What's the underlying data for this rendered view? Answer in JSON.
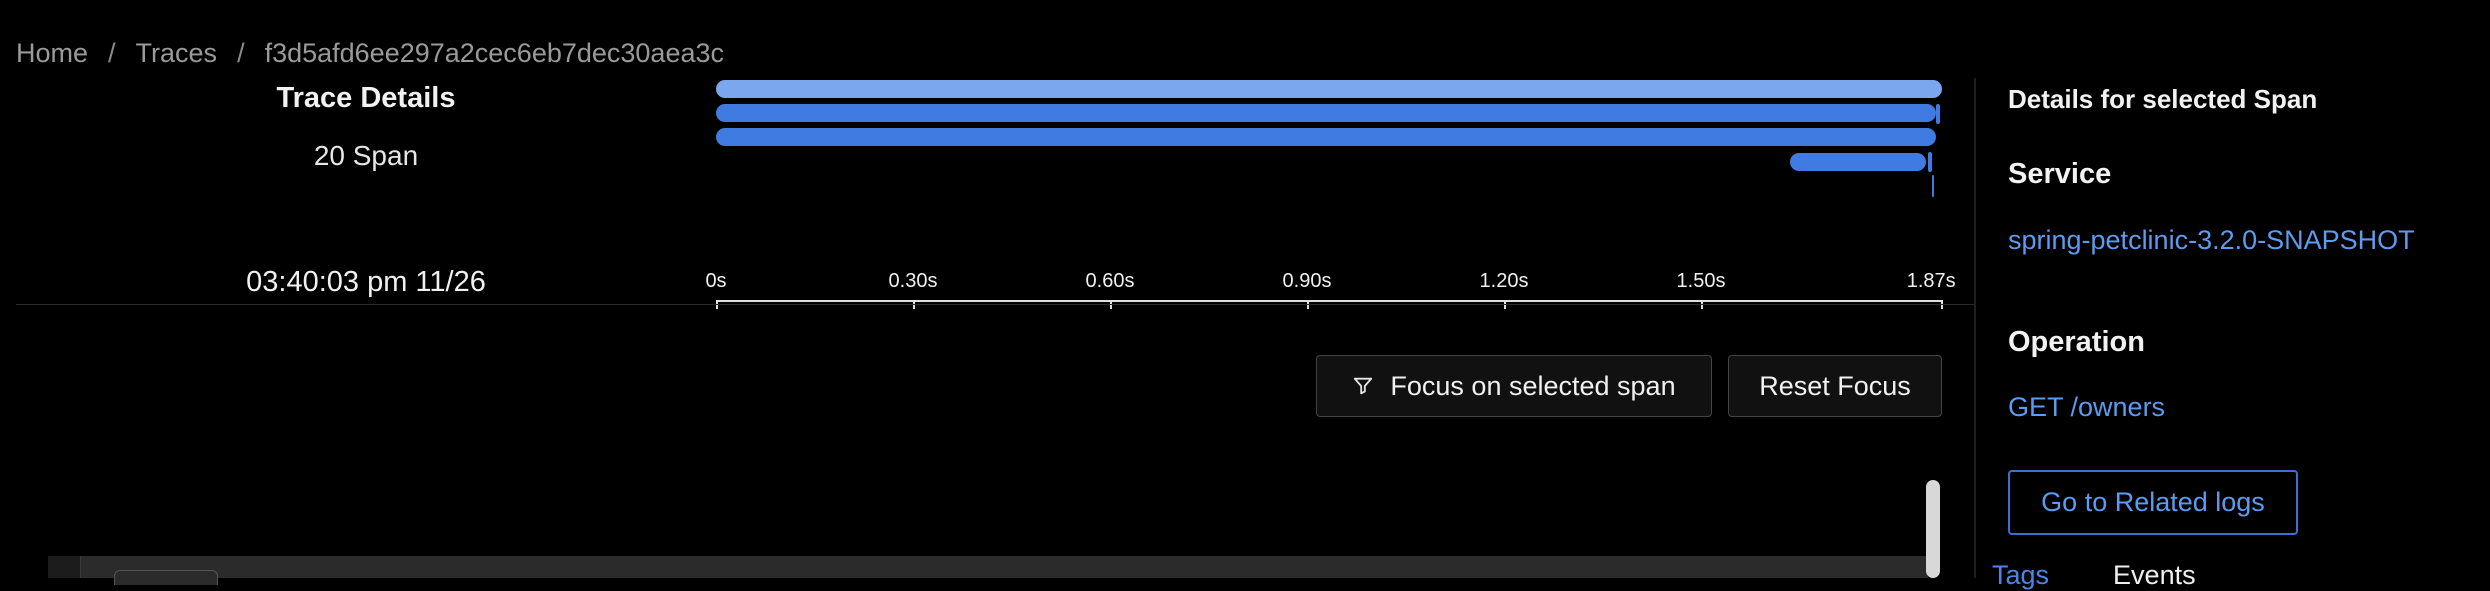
{
  "breadcrumb": {
    "home": "Home",
    "separator1": "/",
    "traces": "Traces",
    "separator2": "/",
    "trace_id": "f3d5afd6ee297a2cec6eb7dec30aea3c"
  },
  "summary": {
    "title": "Trace Details",
    "span_count": "20 Span",
    "timestamp": "03:40:03 pm 11/26"
  },
  "timeline": {
    "bar_color_primary": "#3f7be0",
    "bar_color_light": "#7aa7ee",
    "tick_labels": [
      "0s",
      "0.30s",
      "0.60s",
      "0.90s",
      "1.20s",
      "1.50s",
      "1.87s"
    ]
  },
  "actions": {
    "focus_label": "Focus on selected span",
    "focus_icon": "filter-icon",
    "reset_label": "Reset Focus"
  },
  "details": {
    "heading": "Details for selected Span",
    "service_label": "Service",
    "service_value": "spring-petclinic-3.2.0-SNAPSHOT",
    "operation_label": "Operation",
    "operation_value": "GET /owners",
    "related_logs_label": "Go to Related logs",
    "tabs": [
      "Tags",
      "Events"
    ],
    "accent_color": "#5b9cf0"
  }
}
